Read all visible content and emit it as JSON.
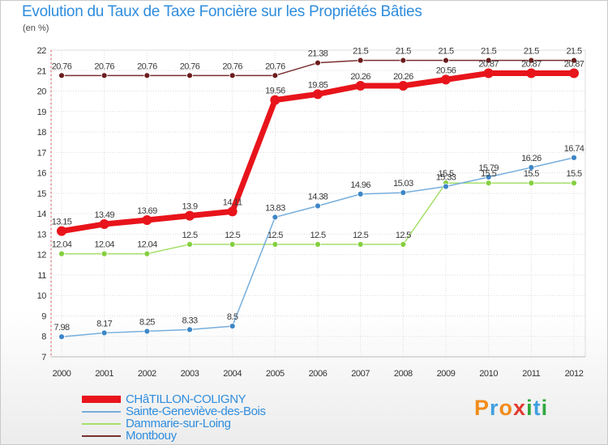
{
  "title": "Evolution du Taux de Taxe Foncière sur les Propriétés Bâties",
  "ylabel": "(en %)",
  "logo": {
    "text": "Proxiti",
    "colors": [
      "#f28c1b",
      "#3fa0e0",
      "#f28c1b",
      "#e23a2e",
      "#2fa83e",
      "#3fa0e0",
      "#2fa83e"
    ]
  },
  "chart_data": {
    "type": "line",
    "title": "Evolution du Taux de Taxe Foncière sur les Propriétés Bâties",
    "xlabel": "",
    "ylabel": "(en %)",
    "x": [
      "2000",
      "2001",
      "2002",
      "2003",
      "2004",
      "2005",
      "2006",
      "2007",
      "2008",
      "2009",
      "2010",
      "2011",
      "2012"
    ],
    "ylim": [
      7,
      22
    ],
    "yticks": [
      "7",
      "8",
      "9",
      "10",
      "11",
      "12",
      "13",
      "14",
      "15",
      "16",
      "17",
      "18",
      "19",
      "20",
      "21",
      "22"
    ],
    "grid": true,
    "series": [
      {
        "name": "Montbouy",
        "color": "#7a2f2f",
        "marker": "#6b1d1d",
        "values": [
          20.76,
          20.76,
          20.76,
          20.76,
          20.76,
          20.76,
          21.38,
          21.5,
          21.5,
          21.5,
          21.5,
          21.5,
          21.5
        ],
        "labels": [
          "20.76",
          "20.76",
          "20.76",
          "20.76",
          "20.76",
          "20.76",
          "21.38",
          "21.5",
          "21.5",
          "21.5",
          "21.5",
          "21.5",
          "21.5"
        ]
      },
      {
        "name": "Dammarie-sur-Loing",
        "color": "#a6df6a",
        "marker": "#84cf3f",
        "values": [
          12.04,
          12.04,
          12.04,
          12.5,
          12.5,
          12.5,
          12.5,
          12.5,
          12.5,
          15.5,
          15.5,
          15.5,
          15.5
        ],
        "labels": [
          "12.04",
          "12.04",
          "12.04",
          "12.5",
          "12.5",
          "12.5",
          "12.5",
          "12.5",
          "12.5",
          "15.5",
          "15.5",
          "15.5",
          "15.5"
        ]
      },
      {
        "name": "Sainte-Geneviève-des-Bois",
        "color": "#76aedc",
        "marker": "#3d86c6",
        "values": [
          7.98,
          8.17,
          8.25,
          8.33,
          8.5,
          13.83,
          14.38,
          14.96,
          15.03,
          15.33,
          15.79,
          16.26,
          16.74
        ],
        "labels": [
          "7.98",
          "8.17",
          "8.25",
          "8.33",
          "8.5",
          "13.83",
          "14.38",
          "14.96",
          "15.03",
          "15.33",
          "15.79",
          "16.26",
          "16.74"
        ]
      },
      {
        "name": "CHâTILLON-COLIGNY",
        "color": "#e8141b",
        "marker": "#e8141b",
        "values": [
          13.15,
          13.49,
          13.69,
          13.9,
          14.11,
          19.56,
          19.85,
          20.26,
          20.26,
          20.56,
          20.87,
          20.87,
          20.87
        ],
        "labels": [
          "13.15",
          "13.49",
          "13.69",
          "13.9",
          "14.11",
          "19.56",
          "19.85",
          "20.26",
          "20.26",
          "20.56",
          "20.87",
          "20.87",
          "20.87"
        ]
      }
    ],
    "legend": {
      "placement": "bottom-left",
      "order": [
        "CHâTILLON-COLIGNY",
        "Sainte-Geneviève-des-Bois",
        "Dammarie-sur-Loing",
        "Montbouy"
      ]
    }
  }
}
